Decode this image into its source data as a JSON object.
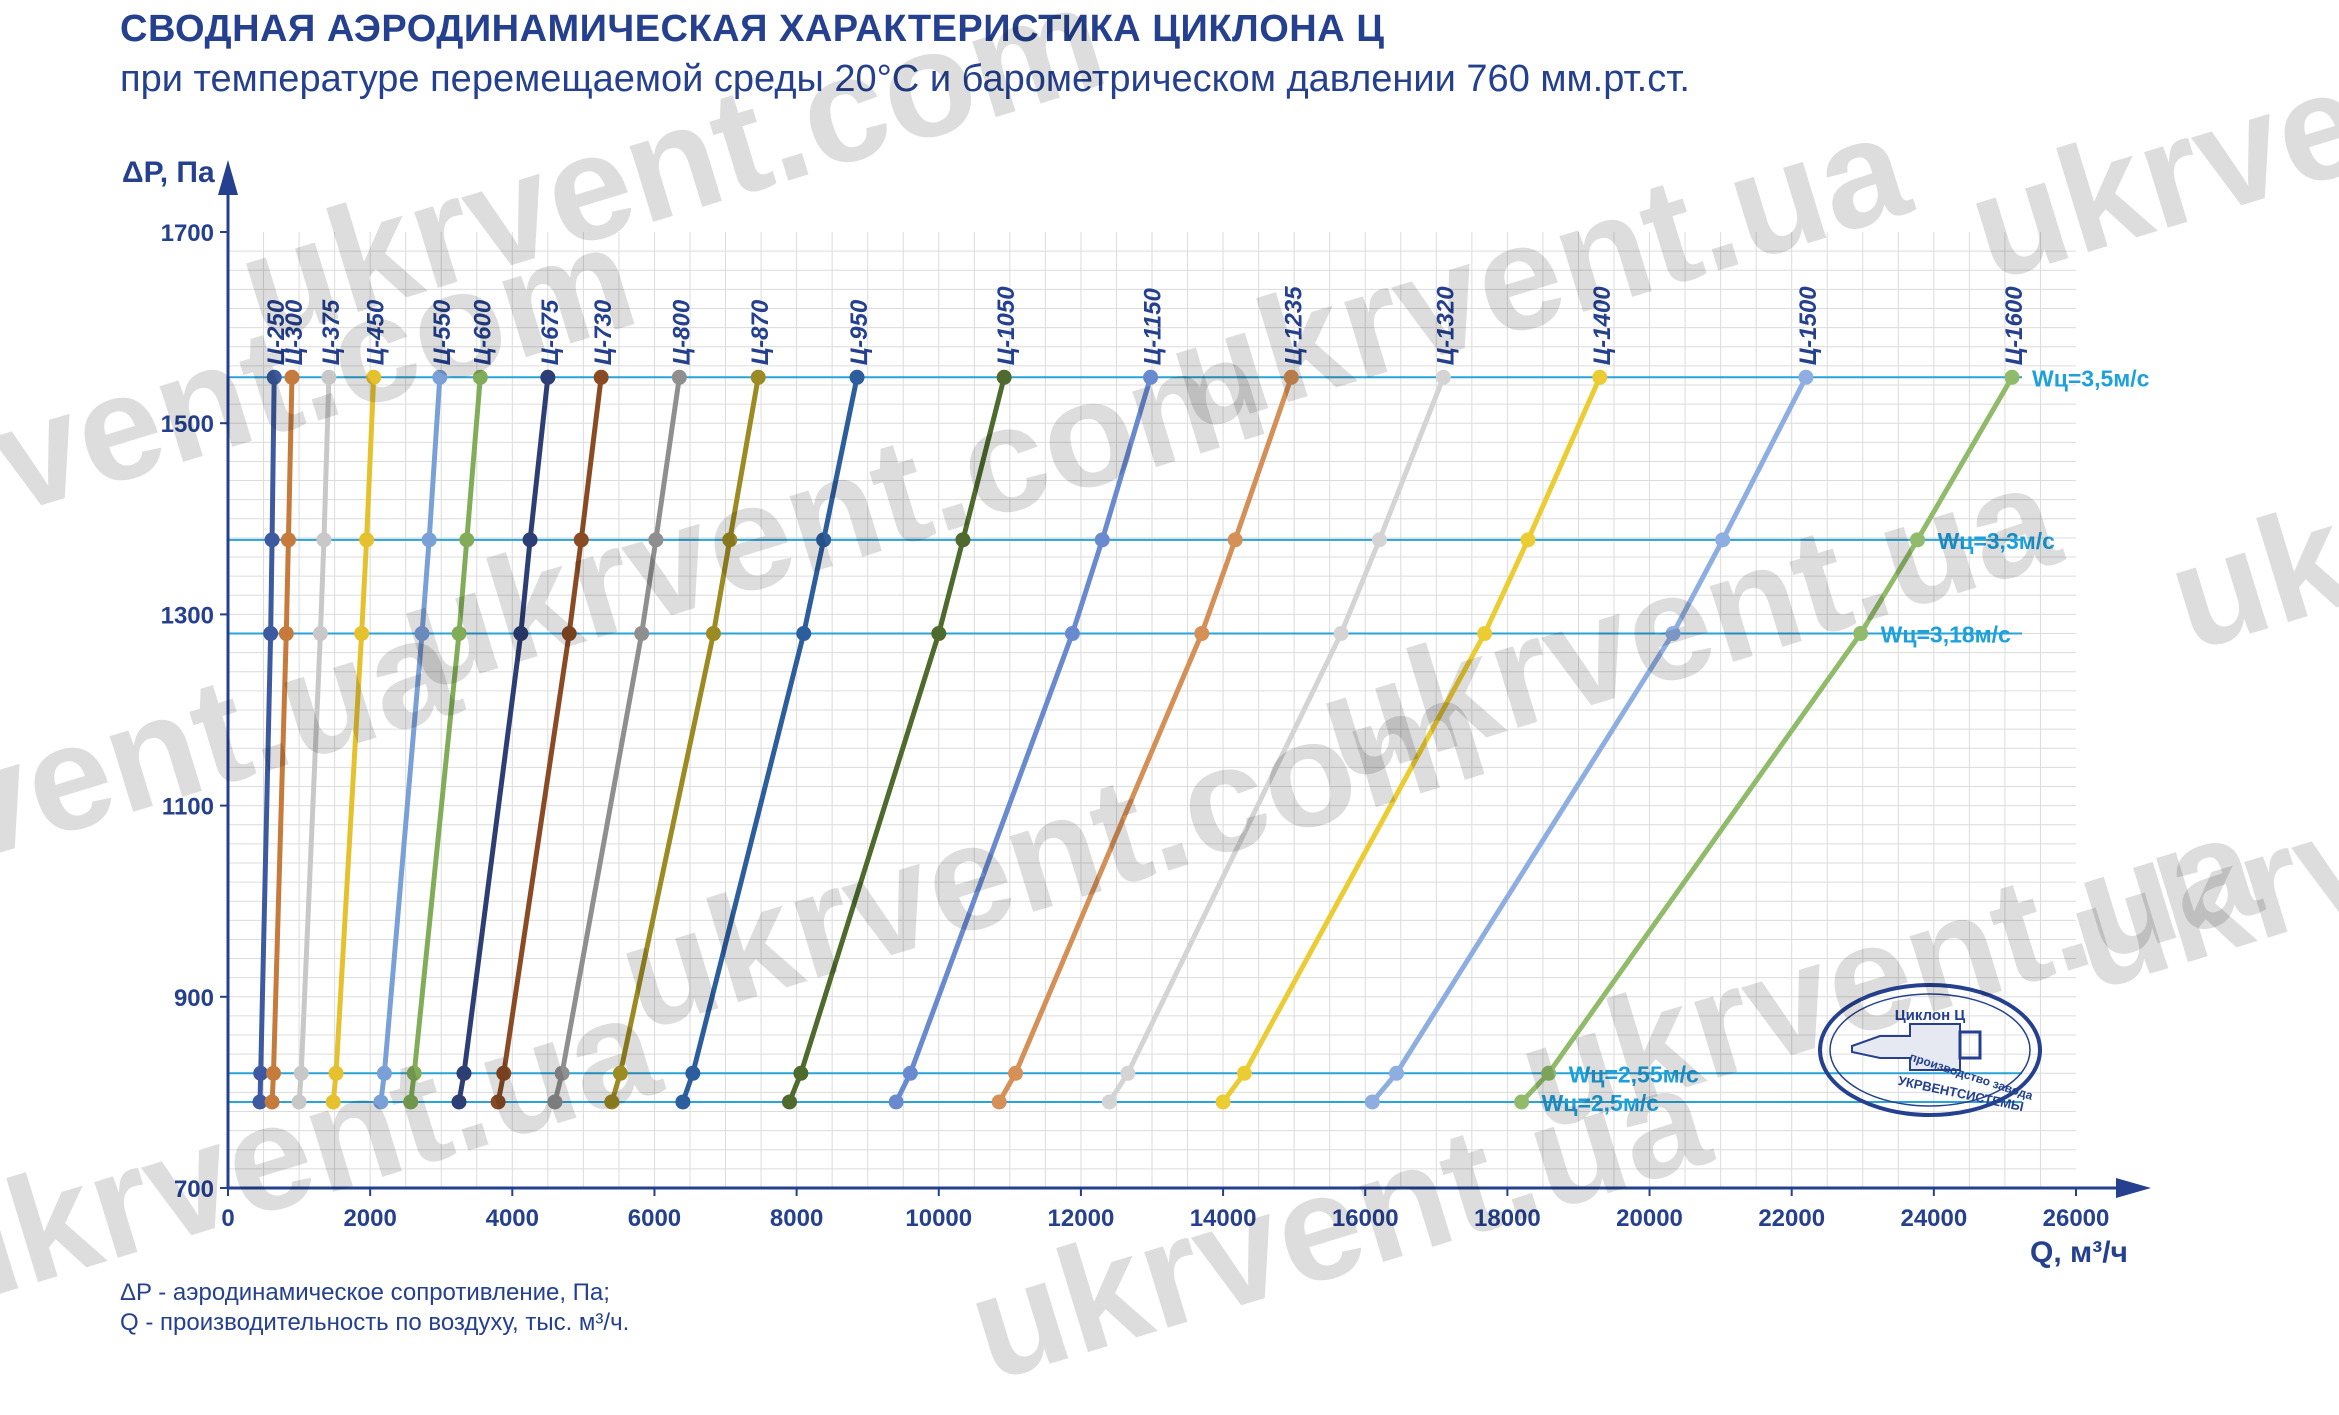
{
  "title": "СВОДНАЯ АЭРОДИНАМИЧЕСКАЯ ХАРАКТЕРИСТИКА ЦИКЛОНА Ц",
  "subtitle": "при температуре перемещаемой среды 20°С и барометрическом давлении 760 мм.рт.ст.",
  "notes": [
    "ΔP - аэродинамическое сопротивление, Па;",
    "Q - производительность по воздуху, тыс. м³/ч."
  ],
  "watermark_text": [
    "ukrvent.com",
    "ukrvent.ua"
  ],
  "logo": {
    "top_text": "Циклон Ц",
    "bottom_text_1": "производство завода",
    "bottom_text_2": "УКРВЕНТСИСТЕМЫ"
  },
  "chart_data": {
    "type": "line",
    "xlabel": "Q, м³/ч",
    "ylabel": "ΔP, Па",
    "xlim": [
      0,
      26000
    ],
    "ylim": [
      700,
      1700
    ],
    "x_ticks": [
      0,
      2000,
      4000,
      6000,
      8000,
      10000,
      12000,
      14000,
      16000,
      18000,
      20000,
      22000,
      24000,
      26000
    ],
    "y_ticks": [
      700,
      900,
      1100,
      1300,
      1500,
      1700
    ],
    "grid": true,
    "pressure_levels": [
      790,
      820,
      1280,
      1378,
      1548
    ],
    "velocity_labels": [
      {
        "label": "Wц=3,5м/с",
        "dp": 1548
      },
      {
        "label": "Wц=3,3м/с",
        "dp": 1378
      },
      {
        "label": "Wц=3,18м/с",
        "dp": 1280
      },
      {
        "label": "Wц=2,55м/с",
        "dp": 820
      },
      {
        "label": "Wц=2,5м/с",
        "dp": 790
      }
    ],
    "series": [
      {
        "name": "Ц-250",
        "color": "#3d5aa0",
        "q": [
          450,
          460,
          600,
          620,
          650
        ]
      },
      {
        "name": "Ц-300",
        "color": "#c67a3c",
        "q": [
          620,
          640,
          820,
          850,
          900
        ]
      },
      {
        "name": "Ц-375",
        "color": "#c8c8c8",
        "q": [
          1000,
          1030,
          1300,
          1350,
          1420
        ]
      },
      {
        "name": "Ц-450",
        "color": "#e6c12e",
        "q": [
          1480,
          1520,
          1880,
          1950,
          2050
        ]
      },
      {
        "name": "Ц-550",
        "color": "#7aa0d8",
        "q": [
          2150,
          2200,
          2730,
          2830,
          2980
        ]
      },
      {
        "name": "Ц-600",
        "color": "#82ad58",
        "q": [
          2570,
          2620,
          3250,
          3360,
          3550
        ]
      },
      {
        "name": "Ц-675",
        "color": "#2c3e73",
        "q": [
          3250,
          3320,
          4120,
          4250,
          4500
        ]
      },
      {
        "name": "Ц-730",
        "color": "#8a4a24",
        "q": [
          3800,
          3880,
          4800,
          4970,
          5250
        ]
      },
      {
        "name": "Ц-800",
        "color": "#8f8f8f",
        "q": [
          4600,
          4700,
          5820,
          6020,
          6350
        ]
      },
      {
        "name": "Ц-870",
        "color": "#9c8a22",
        "q": [
          5400,
          5520,
          6830,
          7060,
          7460
        ]
      },
      {
        "name": "Ц-950",
        "color": "#2c5e9e",
        "q": [
          6400,
          6540,
          8100,
          8380,
          8850
        ]
      },
      {
        "name": "Ц-1050",
        "color": "#4e6a2c",
        "q": [
          7900,
          8060,
          10000,
          10340,
          10920
        ]
      },
      {
        "name": "Ц-1150",
        "color": "#6a8ad0",
        "q": [
          9400,
          9600,
          11880,
          12300,
          12980
        ]
      },
      {
        "name": "Ц-1235",
        "color": "#d49056",
        "q": [
          10850,
          11080,
          13700,
          14170,
          14960
        ]
      },
      {
        "name": "Ц-1320",
        "color": "#d4d4d4",
        "q": [
          12400,
          12660,
          15660,
          16200,
          17100
        ]
      },
      {
        "name": "Ц-1400",
        "color": "#eccc33",
        "q": [
          14000,
          14300,
          17680,
          18290,
          19300
        ]
      },
      {
        "name": "Ц-1500",
        "color": "#8eaee2",
        "q": [
          16100,
          16440,
          20330,
          21030,
          22200
        ]
      },
      {
        "name": "Ц-1600",
        "color": "#90bb6a",
        "q": [
          18200,
          18580,
          22970,
          23770,
          25100
        ]
      }
    ]
  }
}
